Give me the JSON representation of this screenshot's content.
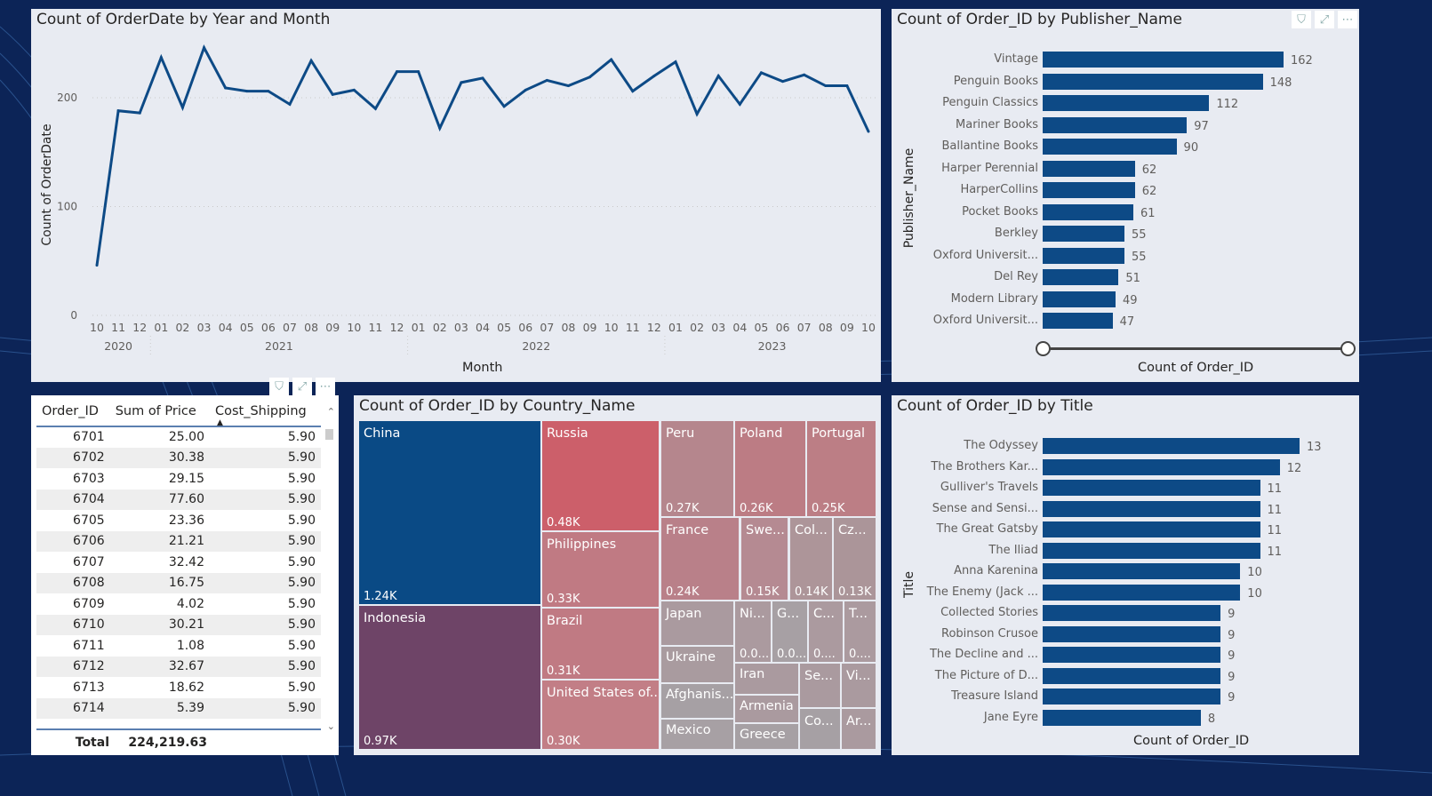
{
  "colors": {
    "bar": "#0d4a86",
    "line": "#0d4a86",
    "background": "#0c2457",
    "panel": "#e8ebf2"
  },
  "line_chart": {
    "title": "Count of OrderDate by Year and Month",
    "chart_data": {
      "type": "line",
      "title": "Count of OrderDate by Year and Month",
      "xlabel": "Month",
      "ylabel": "Count of OrderDate",
      "ylim": [
        0,
        250
      ],
      "yticks": [
        "0",
        "100",
        "200"
      ],
      "grid": true,
      "months": [
        "10",
        "11",
        "12",
        "01",
        "02",
        "03",
        "04",
        "05",
        "06",
        "07",
        "08",
        "09",
        "10",
        "11",
        "12",
        "01",
        "02",
        "03",
        "04",
        "05",
        "06",
        "07",
        "08",
        "09",
        "10",
        "11",
        "12",
        "01",
        "02",
        "03",
        "04",
        "05",
        "06",
        "07",
        "08",
        "09",
        "10"
      ],
      "years": [
        {
          "label": "2020",
          "start": 0,
          "count": 3
        },
        {
          "label": "2021",
          "start": 3,
          "count": 12
        },
        {
          "label": "2022",
          "start": 15,
          "count": 12
        },
        {
          "label": "2023",
          "start": 27,
          "count": 10
        }
      ],
      "values": [
        46,
        188,
        186,
        237,
        191,
        246,
        209,
        206,
        206,
        194,
        234,
        203,
        207,
        190,
        224,
        224,
        172,
        214,
        218,
        192,
        207,
        216,
        211,
        219,
        235,
        206,
        220,
        233,
        185,
        220,
        194,
        223,
        215,
        221,
        211,
        211,
        169
      ]
    }
  },
  "publisher_chart": {
    "title": "Count of Order_ID by Publisher_Name",
    "chart_data": {
      "type": "bar",
      "orientation": "horizontal",
      "ylabel": "Publisher_Name",
      "xlabel": "Count of Order_ID",
      "categories": [
        "Vintage",
        "Penguin Books",
        "Penguin Classics",
        "Mariner Books",
        "Ballantine Books",
        "Harper Perennial",
        "HarperCollins",
        "Pocket Books",
        "Berkley",
        "Oxford Universit...",
        "Del Rey",
        "Modern Library",
        "Oxford Universit..."
      ],
      "values": [
        162,
        148,
        112,
        97,
        90,
        62,
        62,
        61,
        55,
        55,
        51,
        49,
        47
      ]
    }
  },
  "title_chart": {
    "title": "Count of Order_ID by Title",
    "chart_data": {
      "type": "bar",
      "orientation": "horizontal",
      "ylabel": "Title",
      "xlabel": "Count of Order_ID",
      "categories": [
        "The Odyssey",
        "The Brothers Kar...",
        "Gulliver's Travels",
        "Sense and Sensi...",
        "The Great Gatsby",
        "The Iliad",
        "Anna Karenina",
        "The Enemy (Jack ...",
        "Collected Stories",
        "Robinson Crusoe",
        "The Decline and ...",
        "The Picture of D...",
        "Treasure Island",
        "Jane Eyre"
      ],
      "values": [
        13,
        12,
        11,
        11,
        11,
        11,
        10,
        10,
        9,
        9,
        9,
        9,
        9,
        8
      ]
    }
  },
  "table": {
    "columns": [
      "Order_ID",
      "Sum of Price",
      "Cost_Shipping"
    ],
    "rows": [
      [
        "6701",
        "25.00",
        "5.90"
      ],
      [
        "6702",
        "30.38",
        "5.90"
      ],
      [
        "6703",
        "29.15",
        "5.90"
      ],
      [
        "6704",
        "77.60",
        "5.90"
      ],
      [
        "6705",
        "23.36",
        "5.90"
      ],
      [
        "6706",
        "21.21",
        "5.90"
      ],
      [
        "6707",
        "32.42",
        "5.90"
      ],
      [
        "6708",
        "16.75",
        "5.90"
      ],
      [
        "6709",
        "4.02",
        "5.90"
      ],
      [
        "6710",
        "30.21",
        "5.90"
      ],
      [
        "6711",
        "1.08",
        "5.90"
      ],
      [
        "6712",
        "32.67",
        "5.90"
      ],
      [
        "6713",
        "18.62",
        "5.90"
      ],
      [
        "6714",
        "5.39",
        "5.90"
      ]
    ],
    "total_label": "Total",
    "total_value": "224,219.63"
  },
  "treemap": {
    "title": "Count of Order_ID by Country_Name",
    "tiles": [
      {
        "name": "China",
        "value": "1.24K",
        "color": "#0a4a85"
      },
      {
        "name": "Indonesia",
        "value": "0.97K",
        "color": "#6e4467"
      },
      {
        "name": "Russia",
        "value": "0.48K",
        "color": "#cc5f6a"
      },
      {
        "name": "Philippines",
        "value": "0.33K",
        "color": "#c07a83"
      },
      {
        "name": "Brazil",
        "value": "0.31K",
        "color": "#c07a83"
      },
      {
        "name": "United States of...",
        "value": "0.30K",
        "color": "#c27e86"
      },
      {
        "name": "Peru",
        "value": "0.27K",
        "color": "#b5868d"
      },
      {
        "name": "Poland",
        "value": "0.26K",
        "color": "#bc7c84"
      },
      {
        "name": "Portugal",
        "value": "0.25K",
        "color": "#bc7e85"
      },
      {
        "name": "France",
        "value": "0.24K",
        "color": "#b98089"
      },
      {
        "name": "Swe...",
        "value": "0.15K",
        "color": "#b58a92"
      },
      {
        "name": "Col...",
        "value": "0.14K",
        "color": "#ad9599"
      },
      {
        "name": "Cz...",
        "value": "0.13K",
        "color": "#ab9599"
      },
      {
        "name": "Japan",
        "value": "",
        "color": "#aa9a9f"
      },
      {
        "name": "Ukraine",
        "value": "",
        "color": "#a99b9f"
      },
      {
        "name": "Afghanis...",
        "value": "",
        "color": "#a6a0a4"
      },
      {
        "name": "Mexico",
        "value": "",
        "color": "#a7a0a4"
      },
      {
        "name": "Ni...",
        "value": "0.0...",
        "color": "#ab9a9f"
      },
      {
        "name": "G...",
        "value": "0.0...",
        "color": "#a7a0a4"
      },
      {
        "name": "C...",
        "value": "0....",
        "color": "#ab9a9f"
      },
      {
        "name": "T...",
        "value": "0....",
        "color": "#ab9a9f"
      },
      {
        "name": "Iran",
        "value": "",
        "color": "#aa9a9f"
      },
      {
        "name": "Armenia",
        "value": "",
        "color": "#aa9a9f"
      },
      {
        "name": "Greece",
        "value": "",
        "color": "#a6a0a4"
      },
      {
        "name": "Se...",
        "value": "",
        "color": "#aa9a9f"
      },
      {
        "name": "Vi...",
        "value": "",
        "color": "#aa9a9f"
      },
      {
        "name": "Co...",
        "value": "",
        "color": "#a6a0a4"
      },
      {
        "name": "Ar...",
        "value": "",
        "color": "#aa9a9f"
      }
    ]
  },
  "icons": {
    "filter": "filter-icon",
    "focus": "focus-mode-icon",
    "more": "more-options-icon"
  }
}
